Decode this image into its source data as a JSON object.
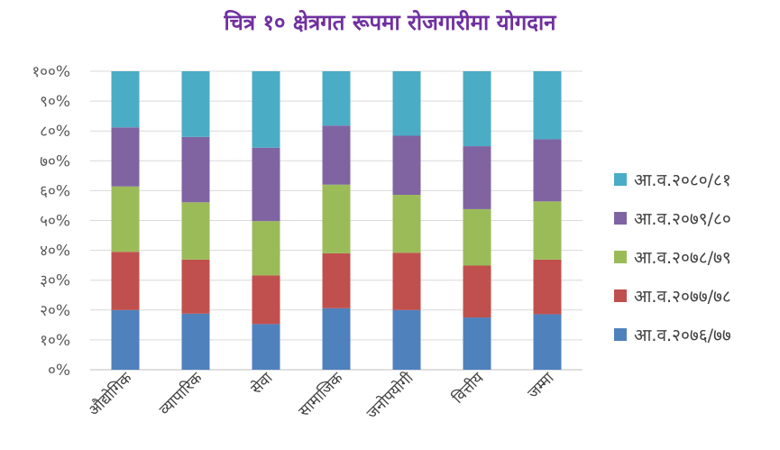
{
  "chart_data": {
    "type": "bar",
    "stacked": "percent",
    "title": "चित्र १० क्षेत्रगत रूपमा रोजगारीमा योगदान",
    "xlabel": "",
    "ylabel": "",
    "ylim": [
      0,
      100
    ],
    "grid": true,
    "legend_position": "right",
    "y_ticks": [
      "०%",
      "१०%",
      "२०%",
      "३०%",
      "४०%",
      "५०%",
      "६०%",
      "७०%",
      "८०%",
      "९०%",
      "१००%"
    ],
    "categories": [
      "औद्योगिक",
      "व्यापारिक",
      "सेवा",
      "सामाजिक",
      "जनोपयोगी",
      "वित्तीय",
      "जम्मा"
    ],
    "series": [
      {
        "name": "आ.व.२०७६/७७",
        "color": "#4f81bd",
        "values": [
          20,
          18.8,
          15.3,
          20.6,
          20.0,
          17.5,
          18.6
        ]
      },
      {
        "name": "आ.व.२०७७/७८",
        "color": "#c0504d",
        "values": [
          19.5,
          18.1,
          16.3,
          18.4,
          19.2,
          17.4,
          18.3
        ]
      },
      {
        "name": "आ.व.२०७८/७९",
        "color": "#9bbb59",
        "values": [
          21.9,
          19.2,
          18.2,
          23.0,
          19.4,
          18.9,
          19.5
        ]
      },
      {
        "name": "आ.व.२०७९/८०",
        "color": "#8064a2",
        "values": [
          19.8,
          21.9,
          24.6,
          19.8,
          19.8,
          21.1,
          20.8
        ]
      },
      {
        "name": "आ.व.२०८०/८१",
        "color": "#4bacc6",
        "values": [
          18.8,
          22.0,
          25.6,
          18.2,
          21.6,
          25.1,
          22.8
        ]
      }
    ]
  }
}
